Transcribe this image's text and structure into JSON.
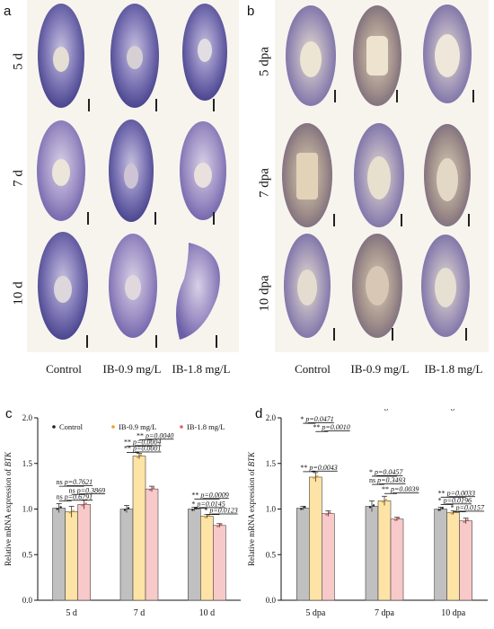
{
  "panels": {
    "a": {
      "letter": "a",
      "row_labels": [
        "5 d",
        "7 d",
        "10 d"
      ],
      "group_labels": [
        "Control",
        "IB-0.9 mg/L",
        "IB-1.8 mg/L"
      ]
    },
    "b": {
      "letter": "b",
      "row_labels": [
        "5 dpa",
        "7 dpa",
        "10 dpa"
      ],
      "group_labels": [
        "Control",
        "IB-0.9 mg/L",
        "IB-1.8 mg/L"
      ]
    },
    "c": {
      "letter": "c"
    },
    "d": {
      "letter": "d"
    }
  },
  "colors": {
    "control": "#c0c0c0",
    "ib09": "#fde3a6",
    "ib18": "#f8c9c9",
    "control_dot": "#222222",
    "ib09_dot": "#f0a020",
    "ib18_dot": "#e06060",
    "stain_dark": "#4a4493",
    "stain_light": "#8d86bf"
  },
  "chart_data": [
    {
      "type": "bar",
      "ylabel": "Relative mRNA expression of BTK",
      "ylim": [
        0,
        2.0
      ],
      "yticks": [
        "0.0",
        "0.5",
        "1.0",
        "1.5",
        "2.0"
      ],
      "categories": [
        "5 d",
        "7 d",
        "10 d"
      ],
      "legend": "top",
      "series": [
        {
          "name": "Control",
          "values": [
            1.01,
            1.0,
            1.0
          ],
          "errors": [
            0.05,
            0.04,
            0.02
          ]
        },
        {
          "name": "IB-0.9 mg/L",
          "values": [
            0.97,
            1.58,
            0.92
          ],
          "errors": [
            0.06,
            0.03,
            0.02
          ]
        },
        {
          "name": "IB-1.8 mg/L",
          "values": [
            1.05,
            1.22,
            0.82
          ],
          "errors": [
            0.05,
            0.03,
            0.02
          ]
        }
      ],
      "annotations": [
        {
          "cat": 0,
          "from": 0,
          "to": 2,
          "level": 1.25,
          "stars": "ns",
          "p": "p=0.7621"
        },
        {
          "cat": 0,
          "from": 1,
          "to": 2,
          "level": 1.16,
          "stars": "ns",
          "p": "p=0.3869"
        },
        {
          "cat": 0,
          "from": 0,
          "to": 1,
          "level": 1.09,
          "stars": "ns",
          "p": "p=0.6791"
        },
        {
          "cat": 1,
          "from": 1,
          "to": 2,
          "level": 1.76,
          "stars": "**",
          "p": "p=0.0040"
        },
        {
          "cat": 1,
          "from": 0,
          "to": 2,
          "level": 1.69,
          "stars": "**",
          "p": "p=0.0004"
        },
        {
          "cat": 1,
          "from": 0,
          "to": 1,
          "level": 1.62,
          "stars": "**",
          "p": "p=0.0001"
        },
        {
          "cat": 2,
          "from": 0,
          "to": 2,
          "level": 1.11,
          "stars": "**",
          "p": "p=0.0009"
        },
        {
          "cat": 2,
          "from": 0,
          "to": 1,
          "level": 1.01,
          "stars": "*",
          "p": "p=0.0145"
        },
        {
          "cat": 2,
          "from": 1,
          "to": 2,
          "level": 0.94,
          "stars": "*",
          "p": "p=0.0123"
        }
      ]
    },
    {
      "type": "bar",
      "ylabel": "Relative mRNA expression of BTK",
      "ylim": [
        0,
        2.0
      ],
      "yticks": [
        "0.0",
        "0.5",
        "1.0",
        "1.5",
        "2.0"
      ],
      "categories": [
        "5 dpa",
        "7 dpa",
        "10 dpa"
      ],
      "legend": "top",
      "series": [
        {
          "name": "Control",
          "values": [
            1.01,
            1.03,
            1.0
          ],
          "errors": [
            0.02,
            0.06,
            0.02
          ]
        },
        {
          "name": "IB-0.9 mg/L",
          "values": [
            1.35,
            1.09,
            0.96
          ],
          "errors": [
            0.05,
            0.05,
            0.02
          ]
        },
        {
          "name": "IB-1.8 mg/L",
          "values": [
            0.95,
            0.89,
            0.87
          ],
          "errors": [
            0.03,
            0.02,
            0.03
          ]
        }
      ],
      "annotations": [
        {
          "cat": 0,
          "from": 0,
          "to": 1,
          "level": 1.94,
          "stars": "*",
          "p": "p=0.0471"
        },
        {
          "cat": 0,
          "from": 1,
          "to": 2,
          "level": 1.85,
          "stars": "**",
          "p": "p=0.0010"
        },
        {
          "cat": 0,
          "from": 0,
          "to": 1,
          "level": 1.41,
          "stars": "**",
          "p": "p=0.0043"
        },
        {
          "cat": 1,
          "from": 0,
          "to": 2,
          "level": 1.36,
          "stars": "*",
          "p": "p=0.0457"
        },
        {
          "cat": 1,
          "from": 0,
          "to": 1,
          "level": 1.27,
          "stars": "ns",
          "p": "p=0.3493"
        },
        {
          "cat": 1,
          "from": 1,
          "to": 2,
          "level": 1.17,
          "stars": "**",
          "p": "p=0.0039"
        },
        {
          "cat": 2,
          "from": 0,
          "to": 2,
          "level": 1.13,
          "stars": "**",
          "p": "p=0.0033"
        },
        {
          "cat": 2,
          "from": 0,
          "to": 1,
          "level": 1.05,
          "stars": "*",
          "p": "p=0.0196"
        },
        {
          "cat": 2,
          "from": 1,
          "to": 2,
          "level": 0.97,
          "stars": "*",
          "p": "p=0.0157"
        }
      ]
    }
  ]
}
